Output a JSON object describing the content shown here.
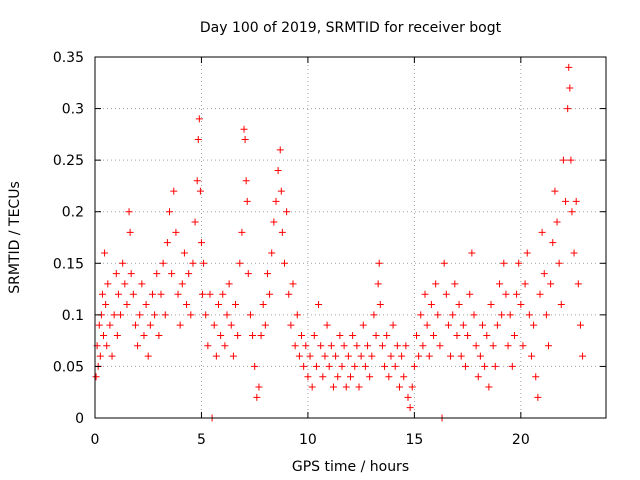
{
  "chart_data": {
    "type": "scatter",
    "title": "Day 100 of 2019, SRMTID for receiver bogt",
    "xlabel": "GPS time / hours",
    "ylabel": "SRMTID / TECUs",
    "xlim": [
      0,
      24
    ],
    "ylim": [
      0,
      0.35
    ],
    "xticks": [
      0,
      5,
      10,
      15,
      20
    ],
    "xtick_labels": [
      "0",
      "5",
      "10",
      "15",
      "20"
    ],
    "yticks": [
      0,
      0.05,
      0.1,
      0.15,
      0.2,
      0.25,
      0.3,
      0.35
    ],
    "ytick_labels": [
      "0",
      "0.05",
      "0.1",
      "0.15",
      "0.2",
      "0.25",
      "0.3",
      "0.35"
    ],
    "grid": true,
    "marker": "+",
    "color": "#ff0000",
    "series": [
      {
        "name": "SRMTID",
        "points": [
          [
            0.05,
            0.04
          ],
          [
            0.1,
            0.07
          ],
          [
            0.15,
            0.05
          ],
          [
            0.2,
            0.09
          ],
          [
            0.25,
            0.06
          ],
          [
            0.3,
            0.1
          ],
          [
            0.35,
            0.12
          ],
          [
            0.4,
            0.08
          ],
          [
            0.45,
            0.16
          ],
          [
            0.5,
            0.11
          ],
          [
            0.55,
            0.07
          ],
          [
            0.6,
            0.13
          ],
          [
            0.7,
            0.09
          ],
          [
            0.8,
            0.06
          ],
          [
            0.9,
            0.1
          ],
          [
            1.0,
            0.14
          ],
          [
            1.05,
            0.08
          ],
          [
            1.1,
            0.12
          ],
          [
            1.2,
            0.1
          ],
          [
            1.3,
            0.15
          ],
          [
            1.4,
            0.13
          ],
          [
            1.5,
            0.11
          ],
          [
            1.6,
            0.2
          ],
          [
            1.65,
            0.18
          ],
          [
            1.7,
            0.14
          ],
          [
            1.8,
            0.12
          ],
          [
            1.9,
            0.09
          ],
          [
            2.0,
            0.07
          ],
          [
            2.1,
            0.1
          ],
          [
            2.2,
            0.13
          ],
          [
            2.3,
            0.08
          ],
          [
            2.4,
            0.11
          ],
          [
            2.5,
            0.06
          ],
          [
            2.6,
            0.09
          ],
          [
            2.7,
            0.12
          ],
          [
            2.8,
            0.1
          ],
          [
            2.9,
            0.14
          ],
          [
            3.0,
            0.08
          ],
          [
            3.1,
            0.12
          ],
          [
            3.2,
            0.15
          ],
          [
            3.3,
            0.1
          ],
          [
            3.4,
            0.17
          ],
          [
            3.5,
            0.2
          ],
          [
            3.6,
            0.14
          ],
          [
            3.7,
            0.22
          ],
          [
            3.8,
            0.18
          ],
          [
            3.9,
            0.12
          ],
          [
            4.0,
            0.09
          ],
          [
            4.1,
            0.13
          ],
          [
            4.2,
            0.16
          ],
          [
            4.3,
            0.11
          ],
          [
            4.4,
            0.14
          ],
          [
            4.5,
            0.1
          ],
          [
            4.6,
            0.15
          ],
          [
            4.7,
            0.19
          ],
          [
            4.8,
            0.23
          ],
          [
            4.85,
            0.27
          ],
          [
            4.9,
            0.29
          ],
          [
            4.95,
            0.22
          ],
          [
            5.0,
            0.17
          ],
          [
            5.05,
            0.12
          ],
          [
            5.1,
            0.15
          ],
          [
            5.2,
            0.1
          ],
          [
            5.3,
            0.07
          ],
          [
            5.4,
            0.12
          ],
          [
            5.5,
            0.0
          ],
          [
            5.6,
            0.09
          ],
          [
            5.7,
            0.06
          ],
          [
            5.8,
            0.11
          ],
          [
            5.9,
            0.08
          ],
          [
            6.0,
            0.12
          ],
          [
            6.1,
            0.07
          ],
          [
            6.2,
            0.1
          ],
          [
            6.3,
            0.13
          ],
          [
            6.4,
            0.09
          ],
          [
            6.5,
            0.06
          ],
          [
            6.6,
            0.11
          ],
          [
            6.7,
            0.08
          ],
          [
            6.8,
            0.15
          ],
          [
            6.9,
            0.18
          ],
          [
            7.0,
            0.28
          ],
          [
            7.05,
            0.27
          ],
          [
            7.1,
            0.23
          ],
          [
            7.15,
            0.21
          ],
          [
            7.2,
            0.14
          ],
          [
            7.3,
            0.1
          ],
          [
            7.4,
            0.08
          ],
          [
            7.5,
            0.05
          ],
          [
            7.6,
            0.02
          ],
          [
            7.7,
            0.03
          ],
          [
            7.8,
            0.08
          ],
          [
            7.9,
            0.11
          ],
          [
            8.0,
            0.09
          ],
          [
            8.1,
            0.14
          ],
          [
            8.2,
            0.12
          ],
          [
            8.3,
            0.16
          ],
          [
            8.4,
            0.19
          ],
          [
            8.5,
            0.21
          ],
          [
            8.6,
            0.24
          ],
          [
            8.7,
            0.26
          ],
          [
            8.75,
            0.22
          ],
          [
            8.8,
            0.18
          ],
          [
            8.9,
            0.15
          ],
          [
            9.0,
            0.2
          ],
          [
            9.1,
            0.12
          ],
          [
            9.2,
            0.09
          ],
          [
            9.3,
            0.13
          ],
          [
            9.4,
            0.07
          ],
          [
            9.5,
            0.1
          ],
          [
            9.6,
            0.06
          ],
          [
            9.7,
            0.08
          ],
          [
            9.8,
            0.05
          ],
          [
            9.9,
            0.07
          ],
          [
            10.0,
            0.04
          ],
          [
            10.1,
            0.06
          ],
          [
            10.2,
            0.03
          ],
          [
            10.3,
            0.08
          ],
          [
            10.4,
            0.05
          ],
          [
            10.5,
            0.11
          ],
          [
            10.6,
            0.07
          ],
          [
            10.7,
            0.04
          ],
          [
            10.8,
            0.06
          ],
          [
            10.9,
            0.09
          ],
          [
            11.0,
            0.05
          ],
          [
            11.1,
            0.07
          ],
          [
            11.2,
            0.03
          ],
          [
            11.3,
            0.06
          ],
          [
            11.4,
            0.04
          ],
          [
            11.5,
            0.08
          ],
          [
            11.6,
            0.05
          ],
          [
            11.7,
            0.07
          ],
          [
            11.8,
            0.03
          ],
          [
            11.9,
            0.06
          ],
          [
            12.0,
            0.04
          ],
          [
            12.1,
            0.08
          ],
          [
            12.2,
            0.05
          ],
          [
            12.3,
            0.07
          ],
          [
            12.4,
            0.03
          ],
          [
            12.5,
            0.06
          ],
          [
            12.6,
            0.09
          ],
          [
            12.7,
            0.05
          ],
          [
            12.8,
            0.07
          ],
          [
            12.9,
            0.04
          ],
          [
            13.0,
            0.06
          ],
          [
            13.1,
            0.1
          ],
          [
            13.2,
            0.08
          ],
          [
            13.3,
            0.13
          ],
          [
            13.35,
            0.15
          ],
          [
            13.4,
            0.11
          ],
          [
            13.5,
            0.07
          ],
          [
            13.6,
            0.05
          ],
          [
            13.7,
            0.08
          ],
          [
            13.8,
            0.04
          ],
          [
            13.9,
            0.06
          ],
          [
            14.0,
            0.09
          ],
          [
            14.1,
            0.05
          ],
          [
            14.2,
            0.07
          ],
          [
            14.3,
            0.03
          ],
          [
            14.4,
            0.06
          ],
          [
            14.5,
            0.04
          ],
          [
            14.6,
            0.07
          ],
          [
            14.7,
            0.02
          ],
          [
            14.8,
            0.01
          ],
          [
            14.9,
            0.03
          ],
          [
            15.0,
            0.05
          ],
          [
            15.1,
            0.08
          ],
          [
            15.2,
            0.06
          ],
          [
            15.3,
            0.1
          ],
          [
            15.4,
            0.07
          ],
          [
            15.5,
            0.12
          ],
          [
            15.6,
            0.09
          ],
          [
            15.7,
            0.06
          ],
          [
            15.8,
            0.11
          ],
          [
            15.9,
            0.08
          ],
          [
            16.0,
            0.13
          ],
          [
            16.1,
            0.1
          ],
          [
            16.2,
            0.07
          ],
          [
            16.3,
            0.0
          ],
          [
            16.4,
            0.15
          ],
          [
            16.5,
            0.12
          ],
          [
            16.6,
            0.09
          ],
          [
            16.7,
            0.06
          ],
          [
            16.8,
            0.1
          ],
          [
            16.9,
            0.13
          ],
          [
            17.0,
            0.08
          ],
          [
            17.1,
            0.11
          ],
          [
            17.2,
            0.06
          ],
          [
            17.3,
            0.09
          ],
          [
            17.4,
            0.05
          ],
          [
            17.5,
            0.08
          ],
          [
            17.6,
            0.12
          ],
          [
            17.7,
            0.16
          ],
          [
            17.8,
            0.1
          ],
          [
            17.9,
            0.07
          ],
          [
            18.0,
            0.04
          ],
          [
            18.1,
            0.06
          ],
          [
            18.2,
            0.09
          ],
          [
            18.3,
            0.05
          ],
          [
            18.4,
            0.08
          ],
          [
            18.5,
            0.03
          ],
          [
            18.6,
            0.11
          ],
          [
            18.7,
            0.07
          ],
          [
            18.8,
            0.05
          ],
          [
            18.9,
            0.09
          ],
          [
            19.0,
            0.13
          ],
          [
            19.1,
            0.1
          ],
          [
            19.2,
            0.15
          ],
          [
            19.3,
            0.12
          ],
          [
            19.4,
            0.07
          ],
          [
            19.5,
            0.1
          ],
          [
            19.6,
            0.05
          ],
          [
            19.7,
            0.08
          ],
          [
            19.8,
            0.12
          ],
          [
            19.9,
            0.15
          ],
          [
            20.0,
            0.11
          ],
          [
            20.1,
            0.07
          ],
          [
            20.2,
            0.13
          ],
          [
            20.3,
            0.16
          ],
          [
            20.4,
            0.1
          ],
          [
            20.5,
            0.06
          ],
          [
            20.6,
            0.09
          ],
          [
            20.7,
            0.04
          ],
          [
            20.8,
            0.02
          ],
          [
            20.9,
            0.12
          ],
          [
            21.0,
            0.18
          ],
          [
            21.1,
            0.14
          ],
          [
            21.2,
            0.1
          ],
          [
            21.3,
            0.07
          ],
          [
            21.4,
            0.13
          ],
          [
            21.5,
            0.17
          ],
          [
            21.6,
            0.22
          ],
          [
            21.7,
            0.19
          ],
          [
            21.8,
            0.15
          ],
          [
            21.9,
            0.11
          ],
          [
            22.0,
            0.25
          ],
          [
            22.1,
            0.21
          ],
          [
            22.2,
            0.3
          ],
          [
            22.25,
            0.34
          ],
          [
            22.3,
            0.32
          ],
          [
            22.35,
            0.25
          ],
          [
            22.4,
            0.2
          ],
          [
            22.5,
            0.16
          ],
          [
            22.6,
            0.21
          ],
          [
            22.7,
            0.13
          ],
          [
            22.8,
            0.09
          ],
          [
            22.9,
            0.06
          ]
        ]
      }
    ]
  }
}
